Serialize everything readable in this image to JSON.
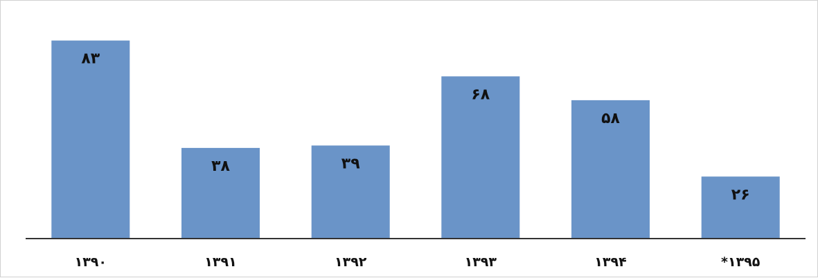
{
  "chart_data": {
    "type": "bar",
    "categories": [
      "۱۳۹۰",
      "۱۳۹۱",
      "۱۳۹۲",
      "۱۳۹۳",
      "۱۳۹۴",
      "*۱۳۹۵"
    ],
    "values": [
      83,
      38,
      39,
      68,
      58,
      26
    ],
    "data_labels": [
      "۸۳",
      "۳۸",
      "۳۹",
      "۶۸",
      "۵۸",
      "۲۶"
    ],
    "title": "",
    "xlabel": "",
    "ylabel": "",
    "ylim": [
      0,
      90
    ],
    "grid": false,
    "legend": "none",
    "colors": {
      "bar": "#6a94c8",
      "axis": "#333333",
      "text": "#111111"
    }
  }
}
